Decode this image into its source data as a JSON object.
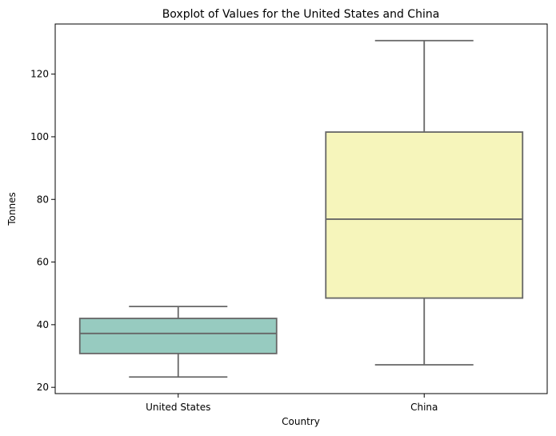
{
  "chart_data": {
    "type": "box",
    "title": "Boxplot of Values for the United States and China",
    "xlabel": "Country",
    "ylabel": "Tonnes",
    "ylim": [
      18,
      136
    ],
    "yticks": [
      20,
      40,
      60,
      80,
      100,
      120
    ],
    "grid": false,
    "categories": [
      "United States",
      "China"
    ],
    "boxes": [
      {
        "name": "United States",
        "whisker_low": 23.3,
        "q1": 30.8,
        "median": 37.2,
        "q3": 42.0,
        "whisker_high": 45.8,
        "color": "#97cbc0"
      },
      {
        "name": "China",
        "whisker_low": 27.2,
        "q1": 48.5,
        "median": 73.7,
        "q3": 101.5,
        "whisker_high": 130.7,
        "color": "#f6f5bb"
      }
    ],
    "line_color": "#666666"
  }
}
